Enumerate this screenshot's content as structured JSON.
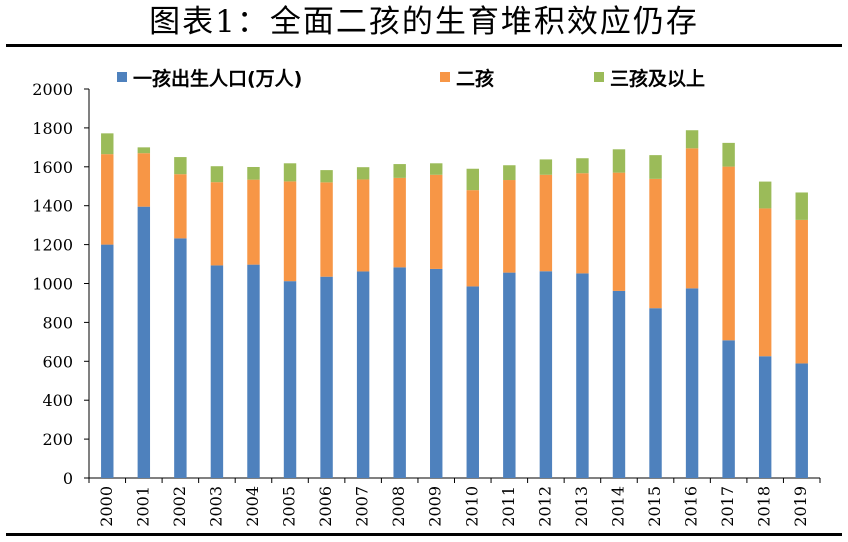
{
  "title": "图表1：全面二孩的生育堆积效应仍存",
  "chart_data": {
    "type": "bar",
    "stacked": true,
    "categories": [
      "2000",
      "2001",
      "2002",
      "2003",
      "2004",
      "2005",
      "2006",
      "2007",
      "2008",
      "2009",
      "2010",
      "2011",
      "2012",
      "2013",
      "2014",
      "2015",
      "2016",
      "2017",
      "2018",
      "2019"
    ],
    "series": [
      {
        "name": "一孩出生人口(万人)",
        "color": "#4e81bd",
        "values": [
          1200,
          1395,
          1232,
          1093,
          1097,
          1012,
          1035,
          1062,
          1083,
          1075,
          985,
          1056,
          1063,
          1052,
          962,
          873,
          975,
          708,
          626,
          589
        ]
      },
      {
        "name": "二孩",
        "color": "#f79646",
        "values": [
          465,
          275,
          330,
          428,
          437,
          513,
          485,
          473,
          460,
          484,
          495,
          476,
          496,
          515,
          608,
          665,
          720,
          893,
          760,
          738
        ]
      },
      {
        "name": "三孩及以上",
        "color": "#9bbb59",
        "values": [
          107,
          30,
          88,
          82,
          65,
          93,
          63,
          63,
          71,
          59,
          110,
          76,
          79,
          77,
          120,
          122,
          93,
          122,
          138,
          141
        ]
      }
    ],
    "yticks": [
      0,
      200,
      400,
      600,
      800,
      1000,
      1200,
      1400,
      1600,
      1800,
      2000
    ],
    "ylim": [
      0,
      2000
    ],
    "legend_position": "top",
    "grid": false
  }
}
